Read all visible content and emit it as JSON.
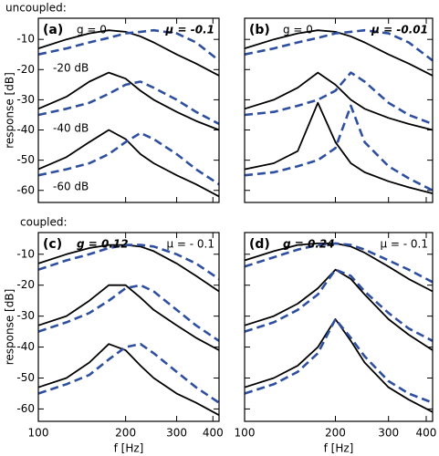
{
  "section_labels": {
    "uncoupled": "uncoupled:",
    "coupled": "coupled:"
  },
  "chart_data": [
    {
      "type": "line",
      "panel_label": "(a)",
      "g_label": "g = 0",
      "mu_label": "μ = -0.1",
      "emphasis": "mu",
      "y_label": "response [dB]",
      "annotations": [
        "-20 dB",
        "-40 dB",
        "-60 dB"
      ],
      "xlog": true,
      "xlim": [
        100,
        420
      ],
      "xticks": [
        100,
        200,
        300,
        400
      ],
      "xtick_labels": false,
      "ylim": [
        -64,
        -3
      ],
      "yticks": [
        -10,
        -20,
        -30,
        -40,
        -50,
        -60
      ],
      "ytick_labels": true,
      "x": [
        100,
        125,
        150,
        175,
        200,
        225,
        250,
        300,
        350,
        420
      ],
      "series": [
        {
          "color": "#000000",
          "dashed": false,
          "values": [
            -13,
            -10,
            -8,
            -7,
            -7.5,
            -9,
            -11,
            -15,
            -18,
            -22
          ]
        },
        {
          "color": "#2e4fa0",
          "dashed": true,
          "values": [
            -15,
            -13,
            -11,
            -9.5,
            -8,
            -7.5,
            -7,
            -8,
            -11,
            -17
          ]
        },
        {
          "color": "#000000",
          "dashed": false,
          "values": [
            -33,
            -29,
            -24,
            -21,
            -23,
            -27,
            -30,
            -34,
            -37,
            -40
          ]
        },
        {
          "color": "#2e4fa0",
          "dashed": true,
          "values": [
            -35,
            -33,
            -31,
            -28,
            -25,
            -24,
            -26,
            -30,
            -34,
            -38
          ]
        },
        {
          "color": "#000000",
          "dashed": false,
          "values": [
            -53,
            -49,
            -44,
            -40,
            -43,
            -48,
            -51,
            -55,
            -58,
            -62
          ]
        },
        {
          "color": "#2e4fa0",
          "dashed": true,
          "values": [
            -55,
            -53,
            -51,
            -48,
            -44,
            -41,
            -43,
            -48,
            -53,
            -58
          ]
        }
      ]
    },
    {
      "type": "line",
      "panel_label": "(b)",
      "g_label": "g = 0",
      "mu_label": "μ = -0.01",
      "emphasis": "mu",
      "xlog": true,
      "xlim": [
        100,
        420
      ],
      "xticks": [
        100,
        200,
        300,
        400
      ],
      "xtick_labels": false,
      "ylim": [
        -64,
        -3
      ],
      "yticks": [
        -10,
        -20,
        -30,
        -40,
        -50,
        -60
      ],
      "ytick_labels": false,
      "x": [
        100,
        125,
        150,
        175,
        200,
        225,
        250,
        300,
        350,
        420
      ],
      "series": [
        {
          "color": "#000000",
          "dashed": false,
          "values": [
            -13,
            -10,
            -8,
            -7,
            -7.5,
            -9,
            -11,
            -15,
            -18,
            -22
          ]
        },
        {
          "color": "#2e4fa0",
          "dashed": true,
          "values": [
            -15,
            -13,
            -11,
            -9.5,
            -8,
            -7.5,
            -7,
            -8,
            -11,
            -17
          ]
        },
        {
          "color": "#000000",
          "dashed": false,
          "values": [
            -33,
            -30,
            -26,
            -21,
            -25,
            -30,
            -33,
            -36,
            -38,
            -40
          ]
        },
        {
          "color": "#2e4fa0",
          "dashed": true,
          "values": [
            -35,
            -34,
            -32,
            -30,
            -27,
            -21,
            -24,
            -31,
            -35,
            -38
          ]
        },
        {
          "color": "#000000",
          "dashed": false,
          "values": [
            -53,
            -51,
            -47,
            -31,
            -44,
            -51,
            -54,
            -57,
            -59,
            -61
          ]
        },
        {
          "color": "#2e4fa0",
          "dashed": true,
          "values": [
            -55,
            -54,
            -52,
            -50,
            -46,
            -32,
            -44,
            -52,
            -56,
            -60
          ]
        }
      ]
    },
    {
      "type": "line",
      "panel_label": "(c)",
      "g_label": "g = 0.12",
      "mu_label": "μ = - 0.1",
      "emphasis": "g",
      "y_label": "response [dB]",
      "x_label": "f [Hz]",
      "xlog": true,
      "xlim": [
        100,
        420
      ],
      "xticks": [
        100,
        200,
        300,
        400
      ],
      "xtick_labels": true,
      "ylim": [
        -64,
        -3
      ],
      "yticks": [
        -10,
        -20,
        -30,
        -40,
        -50,
        -60
      ],
      "ytick_labels": true,
      "x": [
        100,
        125,
        150,
        175,
        200,
        225,
        250,
        300,
        350,
        420
      ],
      "series": [
        {
          "color": "#000000",
          "dashed": false,
          "values": [
            -13,
            -10,
            -8,
            -7,
            -7,
            -7.5,
            -9,
            -13,
            -17,
            -22
          ]
        },
        {
          "color": "#2e4fa0",
          "dashed": true,
          "values": [
            -15,
            -12,
            -10,
            -8,
            -7,
            -7,
            -7.5,
            -10,
            -13,
            -18
          ]
        },
        {
          "color": "#000000",
          "dashed": false,
          "values": [
            -33,
            -30,
            -25,
            -20,
            -20,
            -24,
            -28,
            -33,
            -37,
            -41
          ]
        },
        {
          "color": "#2e4fa0",
          "dashed": true,
          "values": [
            -35,
            -32,
            -29,
            -25,
            -21,
            -20,
            -22,
            -28,
            -33,
            -38
          ]
        },
        {
          "color": "#000000",
          "dashed": false,
          "values": [
            -53,
            -50,
            -45,
            -39,
            -41,
            -46,
            -50,
            -55,
            -58,
            -62
          ]
        },
        {
          "color": "#2e4fa0",
          "dashed": true,
          "values": [
            -55,
            -52,
            -49,
            -44,
            -40,
            -39,
            -42,
            -48,
            -53,
            -58
          ]
        }
      ]
    },
    {
      "type": "line",
      "panel_label": "(d)",
      "g_label": "g = 0.24",
      "mu_label": "μ = - 0.1",
      "emphasis": "g",
      "x_label": "f [Hz]",
      "xlog": true,
      "xlim": [
        100,
        420
      ],
      "xticks": [
        100,
        200,
        300,
        400
      ],
      "xtick_labels": true,
      "ylim": [
        -64,
        -3
      ],
      "yticks": [
        -10,
        -20,
        -30,
        -40,
        -50,
        -60
      ],
      "ytick_labels": false,
      "x": [
        100,
        125,
        150,
        175,
        200,
        225,
        250,
        300,
        350,
        420
      ],
      "series": [
        {
          "color": "#000000",
          "dashed": false,
          "values": [
            -12,
            -9,
            -7,
            -6.5,
            -6.5,
            -7.5,
            -9.5,
            -14,
            -18,
            -22
          ]
        },
        {
          "color": "#2e4fa0",
          "dashed": true,
          "values": [
            -14,
            -11,
            -8.5,
            -7,
            -6.5,
            -7,
            -8.5,
            -12,
            -15,
            -19
          ]
        },
        {
          "color": "#000000",
          "dashed": false,
          "values": [
            -33,
            -30,
            -26,
            -21,
            -15,
            -18,
            -23,
            -31,
            -36,
            -41
          ]
        },
        {
          "color": "#2e4fa0",
          "dashed": true,
          "values": [
            -35,
            -32,
            -28,
            -23,
            -15,
            -17,
            -22,
            -29,
            -34,
            -38
          ]
        },
        {
          "color": "#000000",
          "dashed": false,
          "values": [
            -53,
            -50,
            -46,
            -40,
            -31,
            -38,
            -45,
            -53,
            -57,
            -61
          ]
        },
        {
          "color": "#2e4fa0",
          "dashed": true,
          "values": [
            -55,
            -52,
            -48,
            -42,
            -31,
            -37,
            -43,
            -51,
            -55,
            -58
          ]
        }
      ]
    }
  ]
}
